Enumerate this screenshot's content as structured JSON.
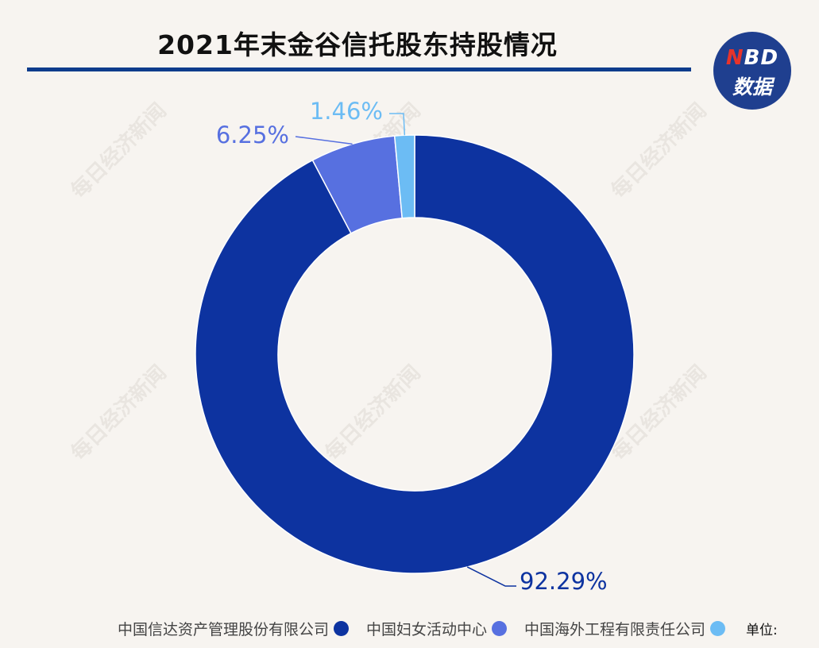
{
  "title": "2021年末金谷信托股东持股情况",
  "logo": {
    "top_n": "N",
    "top_rest": "BD",
    "bottom": "数据"
  },
  "watermark": "每日经济新闻",
  "unit_label": "单位:",
  "colors": {
    "title_rule": "#0e3c8c",
    "logo_bg": "#1f3f8f"
  },
  "chart_data": {
    "type": "pie",
    "donut": true,
    "title": "2021年末金谷信托股东持股情况",
    "unit": "%",
    "legend_position": "bottom",
    "series": [
      {
        "name": "中国信达资产管理股份有限公司",
        "value": 92.29,
        "label": "92.29%",
        "color": "#0d33a0",
        "label_color": "#0d33a0"
      },
      {
        "name": "中国妇女活动中心",
        "value": 6.25,
        "label": "6.25%",
        "color": "#5770e0",
        "label_color": "#5770e0"
      },
      {
        "name": "中国海外工程有限责任公司",
        "value": 1.46,
        "label": "1.46%",
        "color": "#6cbcf4",
        "label_color": "#6cbcf4"
      }
    ]
  }
}
